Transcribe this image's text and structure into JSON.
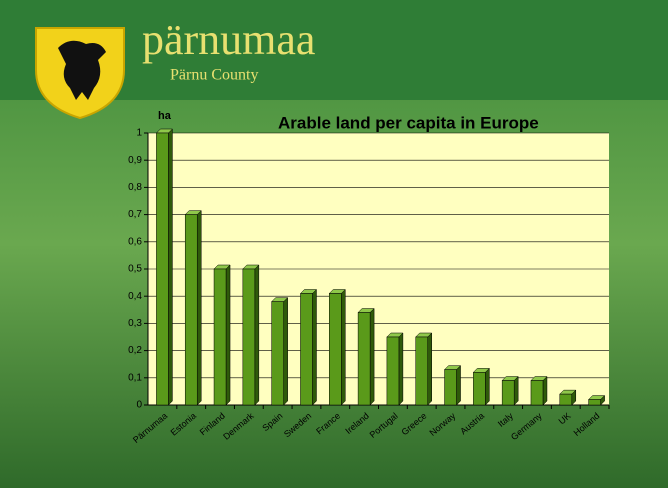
{
  "header": {
    "title": "pärnumaa",
    "subtitle": "Pärnu County"
  },
  "chart_data": {
    "type": "bar",
    "title": "Arable land per capita in Europe",
    "y_label": "ha",
    "categories": [
      "Pärnumaa",
      "Estonia",
      "Finland",
      "Denmark",
      "Spain",
      "Sweden",
      "France",
      "Ireland",
      "Portugal",
      "Greece",
      "Norway",
      "Austria",
      "Italy",
      "Germany",
      "UK",
      "Holland"
    ],
    "values": [
      1,
      0.7,
      0.5,
      0.5,
      0.38,
      0.41,
      0.41,
      0.34,
      0.25,
      0.25,
      0.13,
      0.12,
      0.09,
      0.09,
      0.04,
      0.02
    ],
    "color": "#5a9a1a",
    "ylim": [
      0,
      1
    ],
    "yticks": [
      0,
      {
        "value": 0.1,
        "label": "0,1"
      },
      {
        "value": 0.2,
        "label": "0,2"
      },
      {
        "value": 0.3,
        "label": "0,3"
      },
      {
        "value": 0.4,
        "label": "0,4"
      },
      {
        "value": 0.5,
        "label": "0,5"
      },
      {
        "value": 0.6,
        "label": "0,6"
      },
      {
        "value": 0.7,
        "label": "0,7"
      },
      {
        "value": 0.8,
        "label": "0,8"
      },
      {
        "value": 0.9,
        "label": "0,9"
      },
      1
    ],
    "grid": true
  }
}
